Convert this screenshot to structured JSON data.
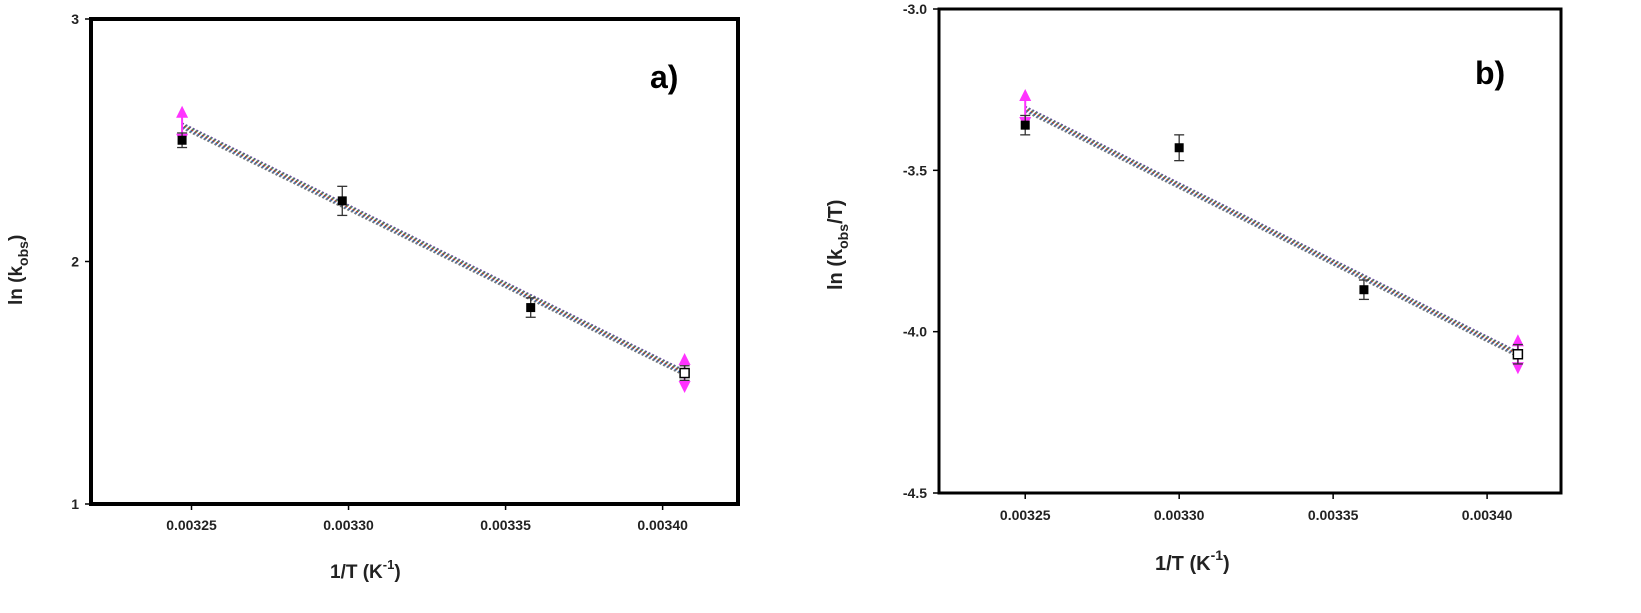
{
  "chart_data": [
    {
      "type": "scatter",
      "panel_label": "a)",
      "xlabel": "1/T (K",
      "xlabel_sup": "-1",
      "xlabel_end": ")",
      "ylabel": "ln (k",
      "ylabel_sub": "obs",
      "ylabel_end": ")",
      "xlim": [
        0.003218,
        0.003424
      ],
      "ylim": [
        1,
        3
      ],
      "x_ticks": [
        "0.00325",
        "0.00330",
        "0.00335",
        "0.00340"
      ],
      "x_tick_values": [
        0.00325,
        0.0033,
        0.00335,
        0.0034
      ],
      "y_ticks": [
        "1",
        "2",
        "3"
      ],
      "y_tick_values": [
        1,
        2,
        3
      ],
      "grid": false,
      "points": [
        {
          "x": 0.003247,
          "y": 2.5,
          "err": 0.03
        },
        {
          "x": 0.003298,
          "y": 2.25,
          "err": 0.06
        },
        {
          "x": 0.003358,
          "y": 1.81,
          "err": 0.04
        },
        {
          "x": 0.003407,
          "y": 1.54,
          "err": 0.03
        }
      ],
      "fit_line": {
        "x": [
          0.003247,
          0.003407
        ],
        "y": [
          2.56,
          1.54
        ]
      },
      "end_markers_color": "#ff33ff",
      "point_color": "#000000"
    },
    {
      "type": "scatter",
      "panel_label": "b)",
      "xlabel": "1/T (K",
      "xlabel_sup": "-1",
      "xlabel_end": ")",
      "ylabel": "ln (k",
      "ylabel_sub": "obs",
      "ylabel_end": "/T)",
      "xlim": [
        0.003222,
        0.003424
      ],
      "ylim": [
        -4.5,
        -3.0
      ],
      "x_ticks": [
        "0.00325",
        "0.00330",
        "0.00335",
        "0.00340"
      ],
      "x_tick_values": [
        0.00325,
        0.0033,
        0.00335,
        0.0034
      ],
      "y_ticks": [
        "-3.0",
        "-3.5",
        "-4.0",
        "-4.5"
      ],
      "y_tick_values": [
        -3.0,
        -3.5,
        -4.0,
        -4.5
      ],
      "grid": false,
      "points": [
        {
          "x": 0.00325,
          "y": -3.36,
          "err": 0.03
        },
        {
          "x": 0.0033,
          "y": -3.43,
          "err": 0.04
        },
        {
          "x": 0.00336,
          "y": -3.87,
          "err": 0.03
        },
        {
          "x": 0.00341,
          "y": -4.07,
          "err": 0.03
        }
      ],
      "fit_line": {
        "x": [
          0.00325,
          0.00341
        ],
        "y": [
          -3.31,
          -4.07
        ]
      },
      "end_markers_color": "#ff33ff",
      "point_color": "#000000"
    }
  ]
}
